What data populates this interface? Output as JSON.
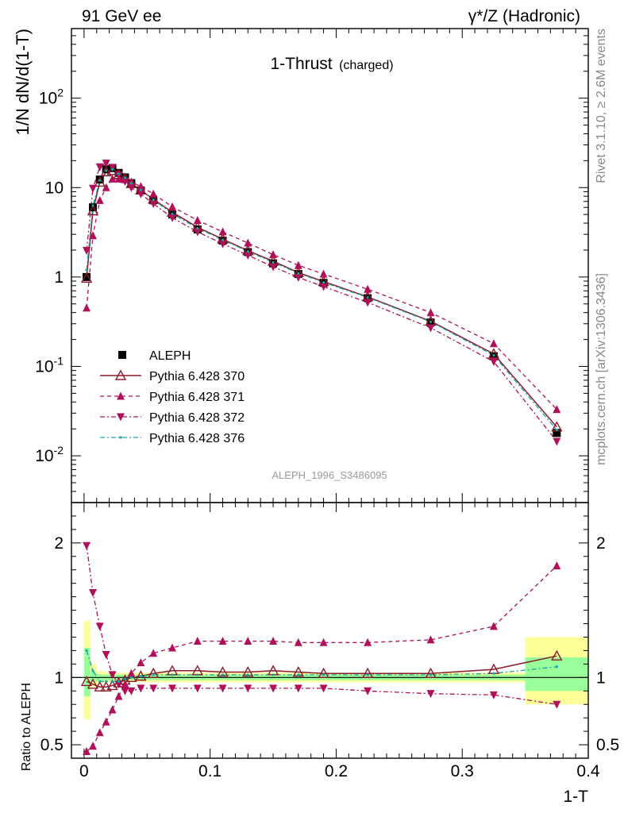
{
  "header": {
    "left": "91 GeV ee",
    "right": "γ*/Z (Hadronic)",
    "side_top": "Rivet 3.1.10, ≥ 2.6M events",
    "side_bottom": "mcplots.cern.ch [arXiv:1306.3436]"
  },
  "plot": {
    "title_main": "1-Thrust",
    "title_sub": "(charged)",
    "analysis_id": "ALEPH_1996_S3486095",
    "colors": {
      "data": "#000000",
      "p370": "#8b1a2a",
      "p371": "#b0105a",
      "p372": "#b0105a",
      "p376": "#1aa3a3",
      "band_inner": "#99ff99",
      "band_outer": "#ffff99"
    }
  },
  "chart_data": [
    {
      "type": "scatter",
      "ylabel": "1/N dN/d(1-T)",
      "xlim": [
        -0.01,
        0.4
      ],
      "ylim": [
        0.003,
        600
      ],
      "yscale": "log",
      "y_ticklabels": [
        "10^-2",
        "10^-1",
        "1",
        "10",
        "10^2"
      ],
      "legend_position": "lower-left",
      "x": [
        0.002,
        0.007,
        0.0125,
        0.0175,
        0.0225,
        0.0275,
        0.0325,
        0.0375,
        0.045,
        0.055,
        0.07,
        0.09,
        0.11,
        0.13,
        0.15,
        0.17,
        0.19,
        0.225,
        0.275,
        0.325,
        0.375
      ],
      "series": [
        {
          "name": "ALEPH",
          "values": [
            1.0,
            6.0,
            12.3,
            16.0,
            16.5,
            14.6,
            13.0,
            11.2,
            9.3,
            7.2,
            5.0,
            3.4,
            2.55,
            1.9,
            1.42,
            1.08,
            0.86,
            0.58,
            0.31,
            0.13,
            0.018
          ]
        },
        {
          "name": "Pythia 6.428 370",
          "values": [
            0.97,
            5.5,
            11.5,
            15.0,
            15.5,
            14.0,
            12.7,
            11.1,
            9.4,
            7.4,
            5.3,
            3.6,
            2.65,
            1.97,
            1.5,
            1.12,
            0.89,
            0.6,
            0.32,
            0.138,
            0.021
          ]
        },
        {
          "name": "Pythia 6.428 371",
          "values": [
            0.45,
            2.9,
            7.2,
            10.0,
            12.5,
            12.5,
            12.3,
            11.5,
            10.3,
            8.5,
            6.1,
            4.3,
            3.2,
            2.4,
            1.78,
            1.35,
            1.08,
            0.73,
            0.4,
            0.18,
            0.033
          ]
        },
        {
          "name": "Pythia 6.428 372",
          "values": [
            1.98,
            9.8,
            17.0,
            18.7,
            16.8,
            13.8,
            11.7,
            10.0,
            8.5,
            6.6,
            4.6,
            3.2,
            2.35,
            1.75,
            1.3,
            0.99,
            0.78,
            0.52,
            0.27,
            0.113,
            0.0145
          ]
        },
        {
          "name": "Pythia 6.428 376",
          "values": [
            1.2,
            6.3,
            12.0,
            15.5,
            16.0,
            14.2,
            12.9,
            11.2,
            9.4,
            7.3,
            5.1,
            3.5,
            2.6,
            1.93,
            1.46,
            1.1,
            0.87,
            0.59,
            0.315,
            0.133,
            0.0195
          ]
        }
      ]
    },
    {
      "type": "scatter",
      "ylabel": "Ratio to ALEPH",
      "xlabel": "1-T",
      "xlim": [
        -0.01,
        0.4
      ],
      "ylim": [
        0.4,
        2.3
      ],
      "x_ticklabels": [
        "0",
        "0.1",
        "0.2",
        "0.3",
        "0.4"
      ],
      "y_ticklabels": [
        "0.5",
        "1",
        "2"
      ],
      "x": [
        0.002,
        0.007,
        0.0125,
        0.0175,
        0.0225,
        0.0275,
        0.0325,
        0.0375,
        0.045,
        0.055,
        0.07,
        0.09,
        0.11,
        0.13,
        0.15,
        0.17,
        0.19,
        0.225,
        0.275,
        0.325,
        0.375
      ],
      "bands": {
        "edges": [
          0.0,
          0.005,
          0.01,
          0.015,
          0.02,
          0.025,
          0.03,
          0.035,
          0.04,
          0.05,
          0.06,
          0.08,
          0.1,
          0.12,
          0.14,
          0.16,
          0.18,
          0.2,
          0.25,
          0.3,
          0.35,
          0.4
        ],
        "outer_low": [
          0.69,
          0.93,
          0.95,
          0.96,
          0.965,
          0.965,
          0.965,
          0.965,
          0.965,
          0.965,
          0.965,
          0.965,
          0.965,
          0.965,
          0.965,
          0.965,
          0.965,
          0.965,
          0.965,
          0.965,
          0.8
        ],
        "outer_high": [
          1.42,
          1.1,
          1.05,
          1.04,
          1.035,
          1.035,
          1.035,
          1.035,
          1.035,
          1.035,
          1.035,
          1.035,
          1.035,
          1.035,
          1.035,
          1.035,
          1.035,
          1.035,
          1.035,
          1.035,
          1.3
        ],
        "inner_low": [
          0.86,
          0.97,
          0.975,
          0.98,
          0.98,
          0.98,
          0.98,
          0.98,
          0.98,
          0.98,
          0.98,
          0.98,
          0.98,
          0.98,
          0.98,
          0.98,
          0.98,
          0.98,
          0.98,
          0.98,
          0.9
        ],
        "inner_high": [
          1.22,
          1.04,
          1.025,
          1.02,
          1.02,
          1.02,
          1.02,
          1.02,
          1.02,
          1.02,
          1.02,
          1.02,
          1.02,
          1.02,
          1.02,
          1.02,
          1.02,
          1.02,
          1.02,
          1.02,
          1.15
        ]
      },
      "series": [
        {
          "name": "Pythia 6.428 370",
          "values": [
            0.97,
            0.95,
            0.93,
            0.93,
            0.94,
            0.96,
            0.98,
            1.0,
            1.01,
            1.03,
            1.05,
            1.05,
            1.04,
            1.04,
            1.05,
            1.04,
            1.03,
            1.03,
            1.03,
            1.06,
            1.16
          ]
        },
        {
          "name": "Pythia 6.428 371",
          "values": [
            0.45,
            0.49,
            0.59,
            0.67,
            0.76,
            0.86,
            0.95,
            1.03,
            1.11,
            1.18,
            1.22,
            1.27,
            1.27,
            1.27,
            1.27,
            1.26,
            1.26,
            1.26,
            1.28,
            1.38,
            1.83
          ]
        },
        {
          "name": "Pythia 6.428 372",
          "values": [
            1.98,
            1.63,
            1.38,
            1.17,
            1.02,
            0.95,
            0.9,
            0.9,
            0.92,
            0.92,
            0.92,
            0.92,
            0.92,
            0.92,
            0.92,
            0.92,
            0.92,
            0.9,
            0.88,
            0.87,
            0.8
          ]
        },
        {
          "name": "Pythia 6.428 376",
          "values": [
            1.2,
            1.05,
            0.97,
            0.97,
            0.97,
            0.97,
            0.99,
            1.0,
            1.01,
            1.02,
            1.02,
            1.02,
            1.02,
            1.02,
            1.02,
            1.02,
            1.02,
            1.02,
            1.02,
            1.03,
            1.08
          ]
        }
      ]
    }
  ]
}
